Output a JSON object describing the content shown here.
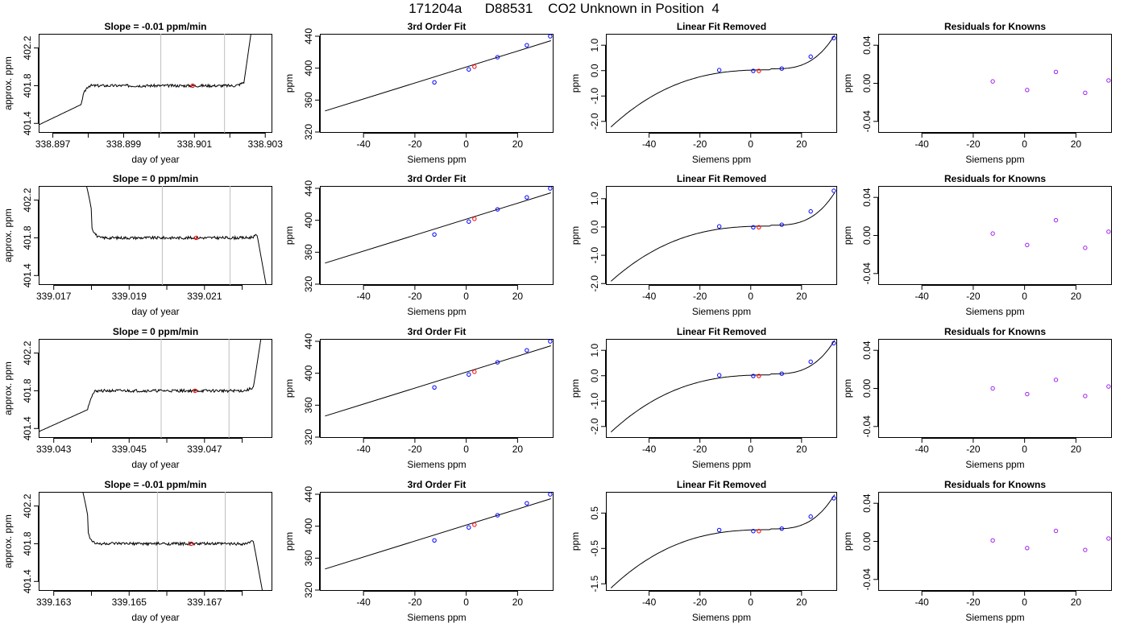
{
  "page_title": "171204a      D88531    CO2 Unknown in Position  4",
  "colors": {
    "line": "#000000",
    "vline": "#bebebe",
    "known": "#0000ff",
    "unknown": "#ff0000",
    "residual": "#a020f0"
  },
  "chart_data": [
    {
      "id": "row1-ts",
      "type": "line",
      "title": "Slope =  -0.01  ppm/min",
      "xlabel": "day of year",
      "ylabel": "approx. ppm",
      "xlim": [
        338.8966,
        338.9032
      ],
      "ylim": [
        401.3,
        402.35
      ],
      "xticks": [
        "338.897",
        "338.898",
        "338.899",
        "338.900",
        "338.901",
        "338.902",
        "338.903"
      ],
      "xtick_labels_shown": [
        "338.897",
        "338.899",
        "338.901",
        "338.903"
      ],
      "yticks": [
        "401.4",
        "401.8",
        "402.2"
      ],
      "vlines": [
        338.90005,
        338.90185
      ],
      "marker": {
        "x": 338.90095,
        "y": 401.8
      },
      "shape": {
        "start": 338.8978,
        "end": 338.9024,
        "base": 401.8,
        "start_kind": "rise",
        "end_kind": "rise"
      }
    },
    {
      "id": "row1-fit",
      "type": "line",
      "title": "3rd Order Fit",
      "xlabel": "Siemens ppm",
      "ylabel": "ppm",
      "xlim": [
        -57,
        34
      ],
      "ylim": [
        319,
        443
      ],
      "xticks": [
        "-40",
        "-20",
        "0",
        "20"
      ],
      "yticks": [
        "320",
        "360",
        "400",
        "440"
      ],
      "curve": {
        "x0": -55,
        "x1": 33,
        "slope": 1.0,
        "intercept": 401.4
      },
      "known_points": [
        [
          -12.4,
          382.2
        ],
        [
          1.0,
          398.4
        ],
        [
          12.2,
          413.7
        ],
        [
          23.6,
          428.7
        ],
        [
          32.7,
          439.9
        ]
      ],
      "unknown_point": [
        3.2,
        401.8
      ]
    },
    {
      "id": "row1-lin",
      "type": "line",
      "title": "Linear Fit Removed",
      "xlabel": "Siemens ppm",
      "ylabel": "ppm",
      "xlim": [
        -57,
        34
      ],
      "ylim": [
        -2.45,
        1.45
      ],
      "xticks": [
        "-40",
        "-20",
        "0",
        "20"
      ],
      "yticks": [
        "-2.0",
        "-1.0",
        "0.0",
        "1.0"
      ],
      "curve": {
        "x0": -55,
        "x1": 33,
        "scale": 2.25
      },
      "known_points": [
        [
          -12.4,
          0.02
        ],
        [
          1.0,
          -0.01
        ],
        [
          12.2,
          0.08
        ],
        [
          23.6,
          0.55
        ],
        [
          32.7,
          1.28
        ]
      ],
      "unknown_point": [
        3.2,
        -0.01
      ]
    },
    {
      "id": "row1-res",
      "type": "scatter",
      "title": "Residuals for Knowns",
      "xlabel": "Siemens ppm",
      "ylabel": "ppm",
      "xlim": [
        -57,
        34
      ],
      "ylim": [
        -0.052,
        0.052
      ],
      "xticks": [
        "-40",
        "-20",
        "0",
        "20"
      ],
      "yticks": [
        "-0.04",
        "0.00",
        "0.04"
      ],
      "points": [
        [
          -12.4,
          0.002
        ],
        [
          1.0,
          -0.007
        ],
        [
          12.2,
          0.012
        ],
        [
          23.6,
          -0.01
        ],
        [
          32.7,
          0.003
        ]
      ]
    },
    {
      "id": "row2-ts",
      "type": "line",
      "title": "Slope =  0  ppm/min",
      "xlabel": "day of year",
      "ylabel": "approx. ppm",
      "xlim": [
        339.0166,
        339.0228
      ],
      "ylim": [
        401.3,
        402.35
      ],
      "xticks": [
        "339.017",
        "339.018",
        "339.019",
        "339.020",
        "339.021",
        "339.022"
      ],
      "xtick_labels_shown": [
        "339.017",
        "339.019",
        "339.021"
      ],
      "yticks": [
        "401.4",
        "401.8",
        "402.2"
      ],
      "vlines": [
        339.01988,
        339.02168
      ],
      "marker": {
        "x": 339.02078,
        "y": 401.8
      },
      "shape": {
        "start": 339.018,
        "end": 339.0224,
        "base": 401.8,
        "start_kind": "fall",
        "end_kind": "fall"
      }
    },
    {
      "id": "row2-fit",
      "type": "line",
      "title": "3rd Order Fit",
      "xlabel": "Siemens ppm",
      "ylabel": "ppm",
      "xlim": [
        -57,
        34
      ],
      "ylim": [
        319,
        443
      ],
      "xticks": [
        "-40",
        "-20",
        "0",
        "20"
      ],
      "yticks": [
        "320",
        "360",
        "400",
        "440"
      ],
      "curve": {
        "x0": -55,
        "x1": 33,
        "slope": 1.0,
        "intercept": 401.4
      },
      "known_points": [
        [
          -12.4,
          382.2
        ],
        [
          1.0,
          398.4
        ],
        [
          12.2,
          413.7
        ],
        [
          23.6,
          428.7
        ],
        [
          32.7,
          439.9
        ]
      ],
      "unknown_point": [
        3.2,
        401.8
      ]
    },
    {
      "id": "row2-lin",
      "type": "line",
      "title": "Linear Fit Removed",
      "xlabel": "Siemens ppm",
      "ylabel": "ppm",
      "xlim": [
        -57,
        34
      ],
      "ylim": [
        -2.05,
        1.45
      ],
      "xticks": [
        "-40",
        "-20",
        "0",
        "20"
      ],
      "yticks": [
        "-2.0",
        "-1.0",
        "0.0",
        "1.0"
      ],
      "curve": {
        "x0": -55,
        "x1": 33,
        "scale": 1.95
      },
      "known_points": [
        [
          -12.4,
          0.02
        ],
        [
          1.0,
          -0.01
        ],
        [
          12.2,
          0.08
        ],
        [
          23.6,
          0.55
        ],
        [
          32.7,
          1.28
        ]
      ],
      "unknown_point": [
        3.2,
        -0.01
      ]
    },
    {
      "id": "row2-res",
      "type": "scatter",
      "title": "Residuals for Knowns",
      "xlabel": "Siemens ppm",
      "ylabel": "ppm",
      "xlim": [
        -57,
        34
      ],
      "ylim": [
        -0.052,
        0.052
      ],
      "xticks": [
        "-40",
        "-20",
        "0",
        "20"
      ],
      "yticks": [
        "-0.04",
        "0.00",
        "0.04"
      ],
      "points": [
        [
          -12.4,
          0.002
        ],
        [
          1.0,
          -0.01
        ],
        [
          12.2,
          0.016
        ],
        [
          23.6,
          -0.013
        ],
        [
          32.7,
          0.004
        ]
      ]
    },
    {
      "id": "row3-ts",
      "type": "line",
      "title": "Slope =  0  ppm/min",
      "xlabel": "day of year",
      "ylabel": "approx. ppm",
      "xlim": [
        339.0426,
        339.0488
      ],
      "ylim": [
        401.3,
        402.35
      ],
      "xticks": [
        "339.043",
        "339.044",
        "339.045",
        "339.046",
        "339.047",
        "339.048"
      ],
      "xtick_labels_shown": [
        "339.043",
        "339.045",
        "339.047"
      ],
      "yticks": [
        "401.4",
        "401.8",
        "402.2"
      ],
      "vlines": [
        339.04585,
        339.04765
      ],
      "marker": {
        "x": 339.04675,
        "y": 401.8
      },
      "shape": {
        "start": 339.0439,
        "end": 339.0483,
        "base": 401.8,
        "start_kind": "rise",
        "end_kind": "rise"
      }
    },
    {
      "id": "row3-fit",
      "type": "line",
      "title": "3rd Order Fit",
      "xlabel": "Siemens ppm",
      "ylabel": "ppm",
      "xlim": [
        -57,
        34
      ],
      "ylim": [
        319,
        443
      ],
      "xticks": [
        "-40",
        "-20",
        "0",
        "20"
      ],
      "yticks": [
        "320",
        "360",
        "400",
        "440"
      ],
      "curve": {
        "x0": -55,
        "x1": 33,
        "slope": 1.0,
        "intercept": 401.4
      },
      "known_points": [
        [
          -12.4,
          382.2
        ],
        [
          1.0,
          398.4
        ],
        [
          12.2,
          413.7
        ],
        [
          23.6,
          428.7
        ],
        [
          32.7,
          439.9
        ]
      ],
      "unknown_point": [
        3.2,
        401.8
      ]
    },
    {
      "id": "row3-lin",
      "type": "line",
      "title": "Linear Fit Removed",
      "xlabel": "Siemens ppm",
      "ylabel": "ppm",
      "xlim": [
        -57,
        34
      ],
      "ylim": [
        -2.45,
        1.45
      ],
      "xticks": [
        "-40",
        "-20",
        "0",
        "20"
      ],
      "yticks": [
        "-2.0",
        "-1.0",
        "0.0",
        "1.0"
      ],
      "curve": {
        "x0": -55,
        "x1": 33,
        "scale": 2.25
      },
      "known_points": [
        [
          -12.4,
          0.02
        ],
        [
          1.0,
          -0.01
        ],
        [
          12.2,
          0.08
        ],
        [
          23.6,
          0.55
        ],
        [
          32.7,
          1.28
        ]
      ],
      "unknown_point": [
        3.2,
        -0.01
      ]
    },
    {
      "id": "row3-res",
      "type": "scatter",
      "title": "Residuals for Knowns",
      "xlabel": "Siemens ppm",
      "ylabel": "ppm",
      "xlim": [
        -57,
        34
      ],
      "ylim": [
        -0.052,
        0.052
      ],
      "xticks": [
        "-40",
        "-20",
        "0",
        "20"
      ],
      "yticks": [
        "-0.04",
        "0.00",
        "0.04"
      ],
      "points": [
        [
          -12.4,
          0.0
        ],
        [
          1.0,
          -0.006
        ],
        [
          12.2,
          0.009
        ],
        [
          23.6,
          -0.008
        ],
        [
          32.7,
          0.002
        ]
      ]
    },
    {
      "id": "row4-ts",
      "type": "line",
      "title": "Slope =  -0.01  ppm/min",
      "xlabel": "day of year",
      "ylabel": "approx. ppm",
      "xlim": [
        339.1626,
        339.1688
      ],
      "ylim": [
        401.3,
        402.35
      ],
      "xticks": [
        "339.163",
        "339.164",
        "339.165",
        "339.166",
        "339.167",
        "339.168"
      ],
      "xtick_labels_shown": [
        "339.163",
        "339.165",
        "339.167"
      ],
      "yticks": [
        "401.4",
        "401.8",
        "402.2"
      ],
      "vlines": [
        339.16575,
        339.16755
      ],
      "marker": {
        "x": 339.16665,
        "y": 401.8
      },
      "shape": {
        "start": 339.1639,
        "end": 339.1683,
        "base": 401.8,
        "start_kind": "fall",
        "end_kind": "fall"
      }
    },
    {
      "id": "row4-fit",
      "type": "line",
      "title": "3rd Order Fit",
      "xlabel": "Siemens ppm",
      "ylabel": "ppm",
      "xlim": [
        -57,
        34
      ],
      "ylim": [
        319,
        443
      ],
      "xticks": [
        "-40",
        "-20",
        "0",
        "20"
      ],
      "yticks": [
        "320",
        "360",
        "400",
        "440"
      ],
      "curve": {
        "x0": -55,
        "x1": 33,
        "slope": 1.0,
        "intercept": 401.4
      },
      "known_points": [
        [
          -12.4,
          382.2
        ],
        [
          1.0,
          398.4
        ],
        [
          12.2,
          413.7
        ],
        [
          23.6,
          428.7
        ],
        [
          32.7,
          439.9
        ]
      ],
      "unknown_point": [
        3.2,
        401.8
      ]
    },
    {
      "id": "row4-lin",
      "type": "line",
      "title": "Linear Fit Removed",
      "xlabel": "Siemens ppm",
      "ylabel": "ppm",
      "xlim": [
        -57,
        34
      ],
      "ylim": [
        -1.7,
        1.1
      ],
      "xticks": [
        "-40",
        "-20",
        "0",
        "20"
      ],
      "yticks": [
        "-1.5",
        "-0.5",
        "0.5"
      ],
      "curve": {
        "x0": -55,
        "x1": 33,
        "scale": 1.65
      },
      "known_points": [
        [
          -12.4,
          0.02
        ],
        [
          1.0,
          -0.01
        ],
        [
          12.2,
          0.06
        ],
        [
          23.6,
          0.4
        ],
        [
          32.7,
          0.92
        ]
      ],
      "unknown_point": [
        3.2,
        -0.01
      ]
    },
    {
      "id": "row4-res",
      "type": "scatter",
      "title": "Residuals for Knowns",
      "xlabel": "Siemens ppm",
      "ylabel": "ppm",
      "xlim": [
        -57,
        34
      ],
      "ylim": [
        -0.052,
        0.052
      ],
      "xticks": [
        "-40",
        "-20",
        "0",
        "20"
      ],
      "yticks": [
        "-0.04",
        "0.00",
        "0.04"
      ],
      "points": [
        [
          -12.4,
          0.001
        ],
        [
          1.0,
          -0.007
        ],
        [
          12.2,
          0.011
        ],
        [
          23.6,
          -0.009
        ],
        [
          32.7,
          0.003
        ]
      ]
    }
  ]
}
